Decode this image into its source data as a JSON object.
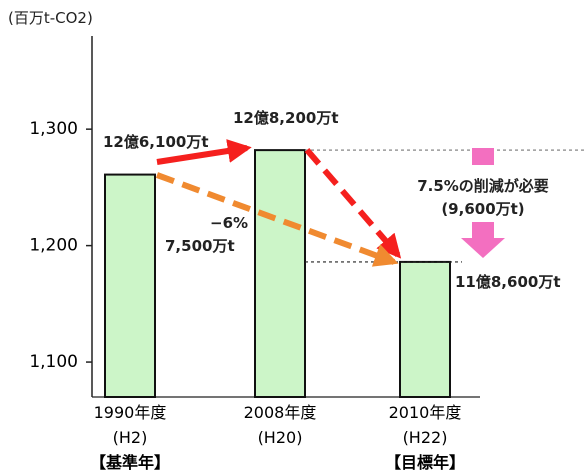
{
  "chart_data": {
    "type": "bar",
    "unit_label": "(百万t-CO2)",
    "y_ticks": [
      "1,300",
      "1,200",
      "1,100"
    ],
    "ylim": [
      1070,
      1380
    ],
    "grid": false,
    "bar_color": "#ccf5c8",
    "categories": [
      {
        "year": "1990年度",
        "era": "(H2)",
        "tag": "【基準年】"
      },
      {
        "year": "2008年度",
        "era": "(H20)",
        "tag": ""
      },
      {
        "year": "2010年度",
        "era": "(H22)",
        "tag": "【目標年】"
      }
    ],
    "values": [
      1261,
      1282,
      1186
    ],
    "annotations": {
      "bar1_label": "12億6,100万t",
      "bar2_label": "12億8,200万t",
      "bar3_label": "11億8,600万t",
      "change_pct": "−6%",
      "change_amount": "7,500万t",
      "reduction_needed": "7.5%の削減が必要",
      "reduction_amount": "(9,600万t)"
    },
    "colors": {
      "arrow_red": "#f5201e",
      "arrow_orange": "#f08a30",
      "arrow_pink": "#f36fc0"
    }
  }
}
